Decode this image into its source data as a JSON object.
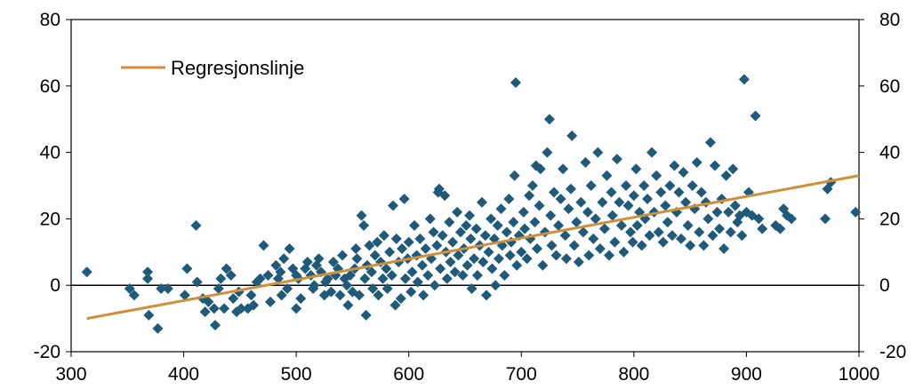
{
  "chart_data": {
    "type": "scatter",
    "x_ticks": [
      300,
      400,
      500,
      600,
      700,
      800,
      900,
      1000
    ],
    "y_ticks": [
      -20,
      0,
      20,
      40,
      60,
      80
    ],
    "xlim": [
      300,
      1000
    ],
    "ylim": [
      -20,
      80
    ],
    "grid": false,
    "right_axis": true,
    "reference_line_y": 0,
    "legend_position": "top-left",
    "colors": {
      "points": "#1f5a7a",
      "regression": "#d08f3b",
      "axis": "#000000"
    },
    "series": [
      {
        "kind": "scatter",
        "marker": "diamond",
        "points": [
          [
            314,
            4
          ],
          [
            352,
            -1
          ],
          [
            356,
            -3
          ],
          [
            368,
            4
          ],
          [
            368,
            2
          ],
          [
            369,
            -9
          ],
          [
            377,
            -13
          ],
          [
            380,
            -1
          ],
          [
            386,
            -1
          ],
          [
            403,
            5
          ],
          [
            401,
            -3
          ],
          [
            411,
            18
          ],
          [
            412,
            1
          ],
          [
            417,
            -4
          ],
          [
            419,
            -8
          ],
          [
            422,
            -5
          ],
          [
            428,
            -12
          ],
          [
            427,
            -7
          ],
          [
            431,
            -1
          ],
          [
            433,
            2
          ],
          [
            436,
            -7
          ],
          [
            438,
            5
          ],
          [
            442,
            3
          ],
          [
            444,
            -4
          ],
          [
            447,
            -8
          ],
          [
            449,
            -2
          ],
          [
            451,
            -7
          ],
          [
            457,
            -7
          ],
          [
            460,
            -3
          ],
          [
            462,
            -6
          ],
          [
            465,
            1
          ],
          [
            468,
            2
          ],
          [
            471,
            12
          ],
          [
            475,
            3
          ],
          [
            477,
            -5
          ],
          [
            482,
            6
          ],
          [
            484,
            2
          ],
          [
            486,
            4
          ],
          [
            487,
            -3
          ],
          [
            489,
            8
          ],
          [
            492,
            -1
          ],
          [
            494,
            11
          ],
          [
            497,
            5
          ],
          [
            500,
            3
          ],
          [
            500,
            -7
          ],
          [
            502,
            2
          ],
          [
            504,
            -4
          ],
          [
            508,
            5
          ],
          [
            510,
            7
          ],
          [
            513,
            3
          ],
          [
            515,
            -1
          ],
          [
            516,
            0
          ],
          [
            518,
            6
          ],
          [
            520,
            8
          ],
          [
            522,
            4
          ],
          [
            525,
            -3
          ],
          [
            526,
            1
          ],
          [
            528,
            2
          ],
          [
            531,
            -2
          ],
          [
            533,
            7
          ],
          [
            535,
            3
          ],
          [
            537,
            5
          ],
          [
            539,
            -3
          ],
          [
            541,
            9
          ],
          [
            543,
            2
          ],
          [
            545,
            0
          ],
          [
            546,
            -6
          ],
          [
            548,
            3
          ],
          [
            550,
            -2
          ],
          [
            552,
            5
          ],
          [
            553,
            11
          ],
          [
            554,
            8
          ],
          [
            556,
            -3
          ],
          [
            558,
            21
          ],
          [
            560,
            18
          ],
          [
            561,
            2
          ],
          [
            562,
            -9
          ],
          [
            563,
            6
          ],
          [
            565,
            12
          ],
          [
            567,
            4
          ],
          [
            568,
            -1
          ],
          [
            570,
            9
          ],
          [
            572,
            13
          ],
          [
            573,
            -3
          ],
          [
            575,
            7
          ],
          [
            577,
            2
          ],
          [
            578,
            15
          ],
          [
            580,
            5
          ],
          [
            581,
            -1
          ],
          [
            583,
            10
          ],
          [
            585,
            3
          ],
          [
            586,
            24
          ],
          [
            588,
            -6
          ],
          [
            589,
            14
          ],
          [
            591,
            7
          ],
          [
            593,
            -4
          ],
          [
            594,
            11
          ],
          [
            596,
            26
          ],
          [
            597,
            2
          ],
          [
            599,
            8
          ],
          [
            600,
            13
          ],
          [
            602,
            -2
          ],
          [
            603,
            4
          ],
          [
            605,
            18
          ],
          [
            607,
            9
          ],
          [
            608,
            1
          ],
          [
            610,
            14
          ],
          [
            612,
            6
          ],
          [
            613,
            -3
          ],
          [
            615,
            11
          ],
          [
            617,
            3
          ],
          [
            619,
            20
          ],
          [
            620,
            8
          ],
          [
            622,
            16
          ],
          [
            623,
            0
          ],
          [
            625,
            12
          ],
          [
            626,
            28
          ],
          [
            627,
            29
          ],
          [
            628,
            5
          ],
          [
            630,
            15
          ],
          [
            632,
            27
          ],
          [
            633,
            10
          ],
          [
            634,
            2
          ],
          [
            636,
            19
          ],
          [
            637,
            7
          ],
          [
            639,
            13
          ],
          [
            641,
            4
          ],
          [
            643,
            22
          ],
          [
            644,
            9
          ],
          [
            646,
            16
          ],
          [
            648,
            3
          ],
          [
            649,
            11
          ],
          [
            651,
            18
          ],
          [
            652,
            6
          ],
          [
            654,
            21
          ],
          [
            655,
            14
          ],
          [
            656,
            -1
          ],
          [
            658,
            8
          ],
          [
            660,
            17
          ],
          [
            661,
            3
          ],
          [
            663,
            12
          ],
          [
            665,
            25
          ],
          [
            666,
            7
          ],
          [
            668,
            15
          ],
          [
            669,
            -3
          ],
          [
            671,
            10
          ],
          [
            673,
            20
          ],
          [
            674,
            5
          ],
          [
            676,
            14
          ],
          [
            677,
            0
          ],
          [
            679,
            18
          ],
          [
            680,
            8
          ],
          [
            682,
            23
          ],
          [
            683,
            12
          ],
          [
            685,
            3
          ],
          [
            687,
            16
          ],
          [
            689,
            26
          ],
          [
            690,
            9
          ],
          [
            691,
            13
          ],
          [
            693,
            19
          ],
          [
            694,
            33
          ],
          [
            695,
            61
          ],
          [
            696,
            6
          ],
          [
            698,
            15
          ],
          [
            700,
            10
          ],
          [
            702,
            22
          ],
          [
            703,
            17
          ],
          [
            705,
            8
          ],
          [
            707,
            27
          ],
          [
            708,
            14
          ],
          [
            710,
            30
          ],
          [
            712,
            19
          ],
          [
            713,
            36
          ],
          [
            714,
            11
          ],
          [
            716,
            24
          ],
          [
            717,
            35
          ],
          [
            719,
            6
          ],
          [
            721,
            16
          ],
          [
            723,
            40
          ],
          [
            725,
            50
          ],
          [
            726,
            21
          ],
          [
            727,
            12
          ],
          [
            729,
            28
          ],
          [
            731,
            9
          ],
          [
            733,
            18
          ],
          [
            735,
            26
          ],
          [
            737,
            35
          ],
          [
            739,
            15
          ],
          [
            740,
            8
          ],
          [
            742,
            23
          ],
          [
            744,
            29
          ],
          [
            745,
            45
          ],
          [
            747,
            12
          ],
          [
            749,
            19
          ],
          [
            751,
            7
          ],
          [
            753,
            25
          ],
          [
            755,
            16
          ],
          [
            757,
            37
          ],
          [
            759,
            22
          ],
          [
            760,
            9
          ],
          [
            762,
            30
          ],
          [
            764,
            14
          ],
          [
            766,
            20
          ],
          [
            768,
            40
          ],
          [
            770,
            11
          ],
          [
            772,
            25
          ],
          [
            774,
            17
          ],
          [
            776,
            33
          ],
          [
            778,
            9
          ],
          [
            780,
            28
          ],
          [
            781,
            21
          ],
          [
            783,
            13
          ],
          [
            785,
            38
          ],
          [
            787,
            25
          ],
          [
            789,
            18
          ],
          [
            791,
            10
          ],
          [
            793,
            30
          ],
          [
            795,
            24
          ],
          [
            797,
            16
          ],
          [
            799,
            13
          ],
          [
            800,
            27
          ],
          [
            802,
            35
          ],
          [
            803,
            18
          ],
          [
            805,
            22
          ],
          [
            807,
            12
          ],
          [
            809,
            30
          ],
          [
            810,
            20
          ],
          [
            812,
            26
          ],
          [
            814,
            15
          ],
          [
            816,
            40
          ],
          [
            818,
            22
          ],
          [
            820,
            33
          ],
          [
            822,
            16
          ],
          [
            824,
            28
          ],
          [
            826,
            13
          ],
          [
            828,
            24
          ],
          [
            830,
            19
          ],
          [
            832,
            30
          ],
          [
            834,
            15
          ],
          [
            836,
            36
          ],
          [
            838,
            22
          ],
          [
            840,
            28
          ],
          [
            842,
            14
          ],
          [
            844,
            34
          ],
          [
            846,
            25
          ],
          [
            848,
            18
          ],
          [
            850,
            12
          ],
          [
            852,
            30
          ],
          [
            854,
            23
          ],
          [
            856,
            37
          ],
          [
            858,
            16
          ],
          [
            860,
            28
          ],
          [
            862,
            12
          ],
          [
            864,
            25
          ],
          [
            866,
            20
          ],
          [
            868,
            43
          ],
          [
            870,
            15
          ],
          [
            872,
            36
          ],
          [
            874,
            22
          ],
          [
            876,
            17
          ],
          [
            878,
            26
          ],
          [
            880,
            11
          ],
          [
            882,
            33
          ],
          [
            884,
            22
          ],
          [
            886,
            16
          ],
          [
            888,
            35
          ],
          [
            890,
            24
          ],
          [
            892,
            19
          ],
          [
            894,
            21
          ],
          [
            896,
            15
          ],
          [
            898,
            62
          ],
          [
            900,
            22
          ],
          [
            902,
            28
          ],
          [
            905,
            21
          ],
          [
            908,
            51
          ],
          [
            911,
            20
          ],
          [
            914,
            17
          ],
          [
            926,
            18
          ],
          [
            930,
            17
          ],
          [
            933,
            23
          ],
          [
            936,
            21
          ],
          [
            940,
            20
          ],
          [
            970,
            20
          ],
          [
            972,
            29
          ],
          [
            975,
            31
          ],
          [
            997,
            22
          ]
        ]
      },
      {
        "kind": "line",
        "name": "Regresjonslinje",
        "points": [
          [
            314,
            -10
          ],
          [
            1000,
            33
          ]
        ]
      }
    ]
  }
}
